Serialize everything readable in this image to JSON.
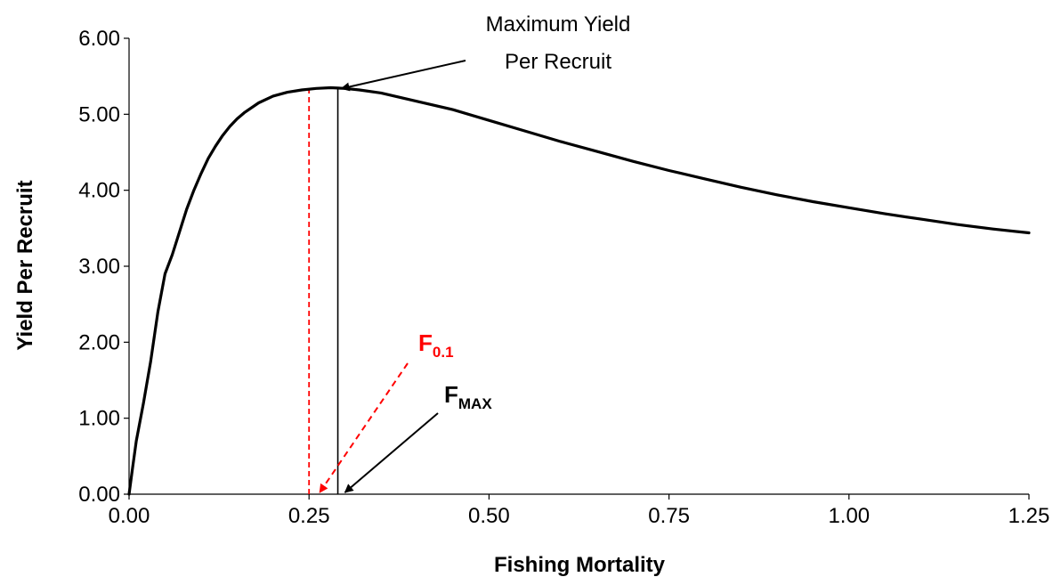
{
  "chart_data": {
    "type": "line",
    "title": "",
    "xlabel": "Fishing Mortality",
    "ylabel": "Yield Per Recruit",
    "xlim": [
      0,
      1.25
    ],
    "ylim": [
      0,
      6
    ],
    "x_ticks": [
      "0.00",
      "0.25",
      "0.50",
      "0.75",
      "1.00",
      "1.25"
    ],
    "y_ticks": [
      "0.00",
      "1.00",
      "2.00",
      "3.00",
      "4.00",
      "5.00",
      "6.00"
    ],
    "grid": false,
    "legend": "none",
    "line_color": "#000000",
    "series": [
      {
        "x": [
          0,
          0.005,
          0.01,
          0.02,
          0.03,
          0.04,
          0.05,
          0.06,
          0.07,
          0.08,
          0.09,
          0.1,
          0.11,
          0.12,
          0.13,
          0.14,
          0.15,
          0.16,
          0.18,
          0.2,
          0.22,
          0.24,
          0.26,
          0.28,
          0.3,
          0.32,
          0.35,
          0.4,
          0.45,
          0.5,
          0.55,
          0.6,
          0.65,
          0.7,
          0.75,
          0.8,
          0.85,
          0.9,
          0.95,
          1.0,
          1.05,
          1.1,
          1.15,
          1.2,
          1.25
        ],
        "y": [
          0,
          0.35,
          0.7,
          1.2,
          1.75,
          2.4,
          2.9,
          3.15,
          3.45,
          3.75,
          4.0,
          4.22,
          4.42,
          4.58,
          4.72,
          4.84,
          4.94,
          5.02,
          5.15,
          5.24,
          5.29,
          5.32,
          5.34,
          5.35,
          5.34,
          5.32,
          5.28,
          5.17,
          5.06,
          4.92,
          4.78,
          4.64,
          4.51,
          4.38,
          4.26,
          4.15,
          4.04,
          3.94,
          3.85,
          3.77,
          3.69,
          3.62,
          3.55,
          3.49,
          3.44
        ]
      }
    ],
    "annotations": {
      "max_label_line1": "Maximum Yield",
      "max_label_line2": "Per Recruit",
      "max_point": {
        "x": 0.29,
        "y": 5.35
      },
      "fmax": {
        "x": 0.29,
        "symbol": "F",
        "subscript": "MAX",
        "color": "#000000"
      },
      "f01": {
        "x": 0.25,
        "symbol": "F",
        "subscript": "0.1",
        "color": "#ff0000"
      }
    }
  }
}
